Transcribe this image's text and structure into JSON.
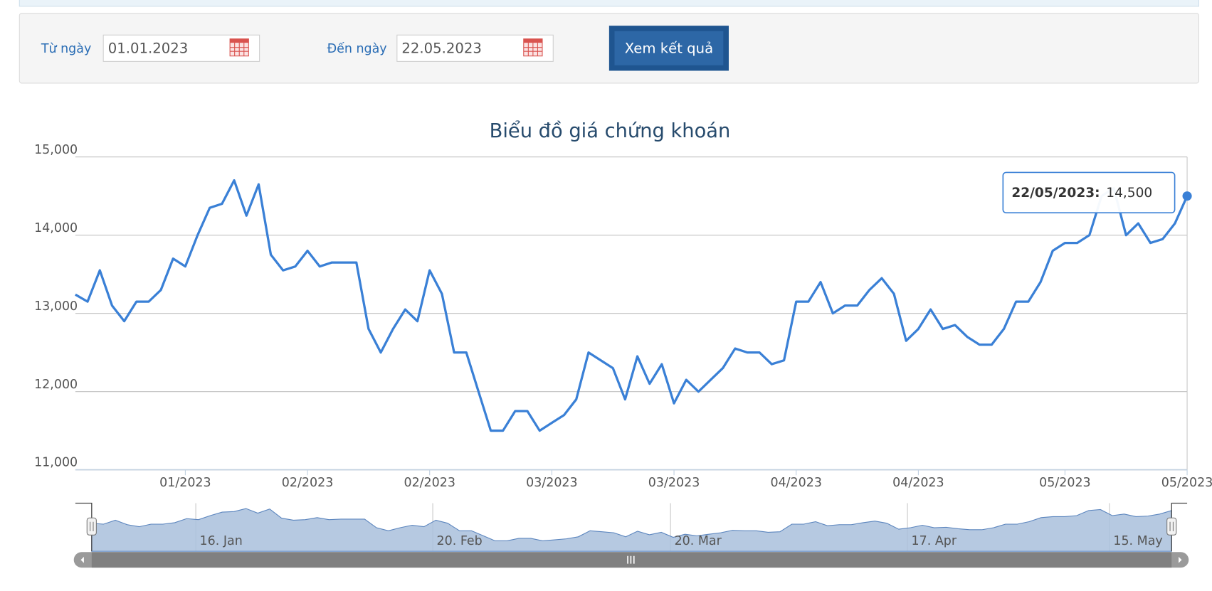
{
  "form": {
    "from_label": "Từ ngày",
    "from_value": "01.01.2023",
    "to_label": "Đến ngày",
    "to_value": "22.05.2023",
    "button": "Xem kết quả"
  },
  "chart_data": {
    "type": "line",
    "title": "Biểu đồ giá chứng khoán",
    "categories": [
      null,
      null,
      null,
      null,
      null,
      null,
      null,
      null,
      null,
      "01/2023",
      null,
      null,
      null,
      null,
      null,
      null,
      null,
      null,
      null,
      "02/2023",
      null,
      null,
      null,
      null,
      null,
      null,
      null,
      null,
      null,
      "02/2023",
      null,
      null,
      null,
      null,
      null,
      null,
      null,
      null,
      null,
      "03/2023",
      null,
      null,
      null,
      null,
      null,
      null,
      null,
      null,
      null,
      "03/2023",
      null,
      null,
      null,
      null,
      null,
      null,
      null,
      null,
      null,
      "04/2023",
      null,
      null,
      null,
      null,
      null,
      null,
      null,
      null,
      null,
      "04/2023",
      null,
      null,
      null,
      null,
      null,
      null,
      null,
      null,
      null,
      null,
      null,
      "05/2023",
      null,
      null,
      null,
      null,
      null,
      null,
      null,
      null,
      null,
      "05/2023"
    ],
    "values": [
      13240,
      13150,
      13550,
      13100,
      12900,
      13150,
      13150,
      13300,
      13700,
      13600,
      14000,
      14350,
      14400,
      14700,
      14250,
      14650,
      13750,
      13550,
      13600,
      13800,
      13600,
      13650,
      13650,
      13650,
      12800,
      12500,
      12800,
      13050,
      12900,
      13550,
      13250,
      12500,
      12500,
      12000,
      11500,
      11500,
      11750,
      11750,
      11500,
      11600,
      11700,
      11900,
      12500,
      12400,
      12300,
      11900,
      12450,
      12100,
      12350,
      11850,
      12150,
      12000,
      12150,
      12300,
      12550,
      12500,
      12500,
      12350,
      12400,
      13150,
      13150,
      13400,
      13000,
      13100,
      13100,
      13300,
      13450,
      13250,
      12650,
      12800,
      13050,
      12800,
      12850,
      12700,
      12600,
      12600,
      12800,
      13150,
      13150,
      13400,
      13800,
      13900,
      13900,
      14000,
      14500,
      14600,
      14000,
      14150,
      13900,
      13950,
      14150,
      14500
    ],
    "color": "#3a80d6",
    "ylim": [
      11000,
      15000
    ],
    "yticks": [
      {
        "value": 11000,
        "label": "11,000"
      },
      {
        "value": 12000,
        "label": "12,000"
      },
      {
        "value": 13000,
        "label": "13,000"
      },
      {
        "value": 14000,
        "label": "14,000"
      },
      {
        "value": 15000,
        "label": "15,000"
      }
    ],
    "grid": true,
    "tooltip": {
      "date": "22/05/2023:",
      "value": "14,500"
    },
    "navigator": {
      "labels": [
        "16. Jan",
        "20. Feb",
        "20. Mar",
        "17. Apr",
        "15. May"
      ]
    }
  }
}
